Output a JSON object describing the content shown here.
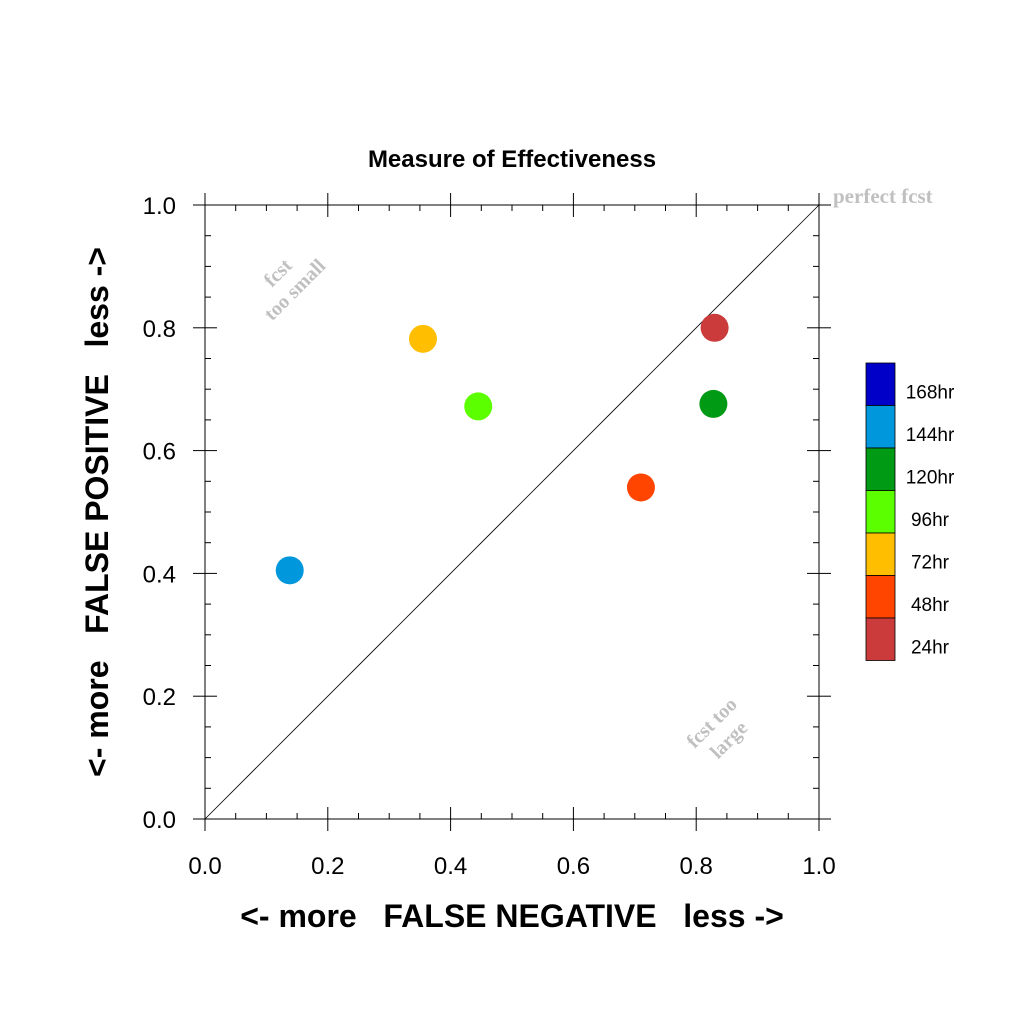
{
  "chart_data": {
    "type": "scatter",
    "title": "Measure of Effectiveness",
    "xlabel": "<- more   FALSE NEGATIVE   less ->",
    "ylabel": "<- more   FALSE POSITIVE   less ->",
    "xlim": [
      0,
      1
    ],
    "ylim": [
      0,
      1
    ],
    "xticks": [
      "0.0",
      "0.2",
      "0.4",
      "0.6",
      "0.8",
      "1.0"
    ],
    "yticks": [
      "0.0",
      "0.2",
      "0.4",
      "0.6",
      "0.8",
      "1.0"
    ],
    "reference_line": "diagonal",
    "annotations": {
      "perfect": "perfect fcst",
      "too_small_line1": "fcst",
      "too_small_line2": "too small",
      "too_large_line1": "fcst too",
      "too_large_line2": "large"
    },
    "points": [
      {
        "label": "24hr",
        "x": 0.83,
        "y": 0.8,
        "color": "#cc3b3b"
      },
      {
        "label": "48hr",
        "x": 0.71,
        "y": 0.54,
        "color": "#ff4500"
      },
      {
        "label": "72hr",
        "x": 0.355,
        "y": 0.782,
        "color": "#ffbf00"
      },
      {
        "label": "96hr",
        "x": 0.445,
        "y": 0.672,
        "color": "#5cff00"
      },
      {
        "label": "120hr",
        "x": 0.828,
        "y": 0.676,
        "color": "#009a14"
      },
      {
        "label": "144hr",
        "x": 0.138,
        "y": 0.405,
        "color": "#0097dc"
      }
    ],
    "legend": {
      "placement": "right",
      "entries": [
        {
          "label": "168hr",
          "color": "#0000c8"
        },
        {
          "label": "144hr",
          "color": "#0097dc"
        },
        {
          "label": "120hr",
          "color": "#009a14"
        },
        {
          "label": "96hr",
          "color": "#5cff00"
        },
        {
          "label": "72hr",
          "color": "#ffbf00"
        },
        {
          "label": "48hr",
          "color": "#ff4500"
        },
        {
          "label": "24hr",
          "color": "#cc3b3b"
        }
      ]
    }
  }
}
